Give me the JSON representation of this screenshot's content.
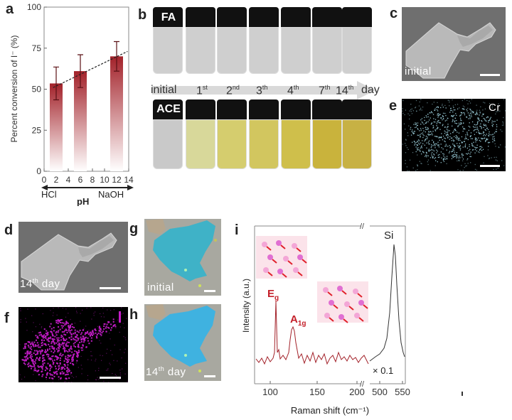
{
  "panels": {
    "a": "a",
    "b": "b",
    "c": "c",
    "d": "d",
    "e": "e",
    "f": "f",
    "g": "g",
    "h": "h",
    "i": "i"
  },
  "panel_a": {
    "ylabel": "Percent conversion of I⁻ (%)",
    "xlabel": "pH",
    "acid_label": "HCl",
    "base_label": "NaOH",
    "yticks": [
      "0",
      "25",
      "50",
      "75",
      "100"
    ],
    "xticks": [
      "0",
      "2",
      "4",
      "6",
      "8",
      "10",
      "12",
      "14"
    ]
  },
  "chart_data": [
    {
      "type": "bar",
      "panel": "a",
      "x": [
        2,
        6,
        12
      ],
      "values": [
        53.5,
        61,
        70
      ],
      "errors": [
        10,
        10,
        9
      ],
      "xlim": [
        0,
        14
      ],
      "ylim": [
        0,
        100
      ],
      "trendline": "dashed",
      "bar_color": "#a3222a",
      "xlabel": "pH",
      "ylabel": "Percent conversion of I⁻ (%)"
    },
    {
      "type": "line",
      "panel": "i",
      "xlabel": "Raman shift (cm⁻¹)",
      "ylabel": "Intensity (a.u.)",
      "xticks_left": [
        "100",
        "150",
        "200"
      ],
      "xticks_right": [
        "500",
        "550"
      ],
      "series": [
        {
          "color": "#a3222a",
          "peaks": [
            {
              "label": "Eg",
              "x": 106
            },
            {
              "label": "A1g",
              "x": 128
            }
          ]
        },
        {
          "color": "#333333",
          "peaks": [
            {
              "label": "Si",
              "x": 520
            }
          ],
          "scale_note": "× 0.1"
        }
      ]
    }
  ],
  "panel_b": {
    "top_tag": "FA",
    "bottom_tag": "ACE",
    "timeline": [
      "initial",
      "1",
      "2",
      "3",
      "4",
      "7",
      "14"
    ],
    "superscripts": [
      "",
      "st",
      "nd",
      "th",
      "th",
      "th",
      "th"
    ],
    "day_label": "day",
    "ace_colors": [
      "#c9c9c9",
      "#d8d89a",
      "#d5cd6e",
      "#d2c65f",
      "#cfbf4b",
      "#c9b33c",
      "#c7b144"
    ],
    "fa_color": "#cfcfcf"
  },
  "panel_c": {
    "label": "initial"
  },
  "panel_d": {
    "label_num": "14",
    "label_sup": "th",
    "label_day": "day"
  },
  "panel_e": {
    "element": "Cr",
    "dot_color": "#9fd3df"
  },
  "panel_f": {
    "dot_color": "#c51cc8"
  },
  "panel_g": {
    "label": "initial"
  },
  "panel_h": {
    "label_num": "14",
    "label_sup": "th",
    "label_day": "day"
  },
  "panel_i": {
    "si": "Si",
    "eg_main": "E",
    "eg_sub": "g",
    "a1g_main": "A",
    "a1g_sub": "1g",
    "scale_note": "× 0.1",
    "axis_break": "//"
  }
}
